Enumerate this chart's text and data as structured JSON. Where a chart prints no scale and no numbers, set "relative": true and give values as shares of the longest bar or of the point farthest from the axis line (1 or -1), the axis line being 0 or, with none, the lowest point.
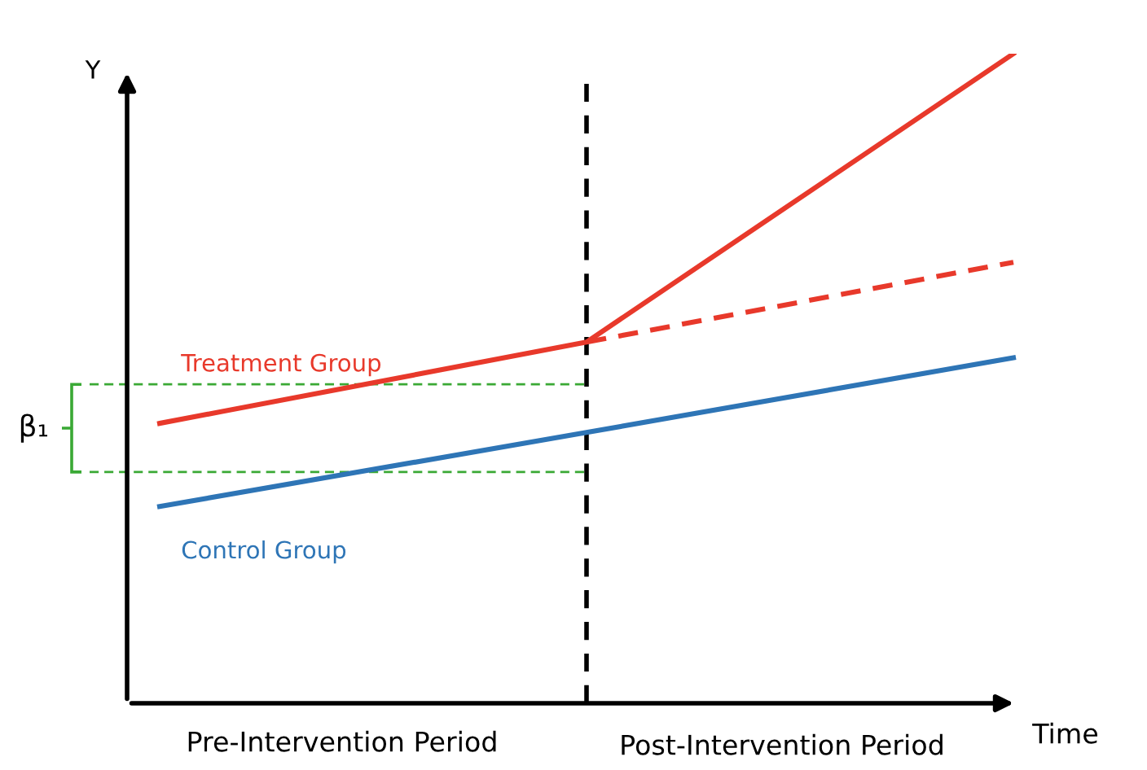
{
  "chart_data": {
    "type": "line",
    "relative": true,
    "ylabel": "Y",
    "xlabel": "Time",
    "categories": [
      null,
      null,
      null
    ],
    "series": [
      {
        "name": "Treatment Group",
        "color": "#e8392b",
        "values": [
          0.431,
          0.556,
          1.0
        ],
        "line_style": "solid"
      },
      {
        "color": "#e8392b",
        "values": [
          null,
          0.556,
          0.679
        ],
        "line_style": "dashed"
      },
      {
        "name": "Control Group",
        "color": "#2e75b6",
        "values": [
          0.303,
          0.417,
          0.532
        ],
        "line_style": "solid"
      }
    ],
    "ref_lines": [
      {
        "axis": "y",
        "value": 0.491,
        "color": "#3aa935",
        "line_style": "dashed",
        "label": "β₁"
      },
      {
        "axis": "y",
        "value": 0.356,
        "color": "#3aa935",
        "line_style": "dashed"
      }
    ],
    "annotations": [
      "Pre-Intervention Period",
      "Post-Intervention Period"
    ],
    "legend": false,
    "marker": "none"
  }
}
